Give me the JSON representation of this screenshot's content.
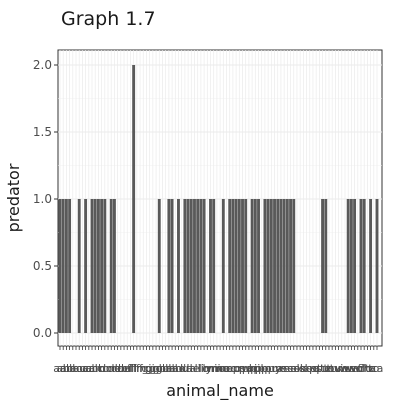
{
  "chart_data": {
    "type": "bar",
    "title": "Graph 1.7",
    "xlabel": "animal_name",
    "ylabel": "predator",
    "ylim": [
      0,
      2
    ],
    "yticks": [
      "0.0",
      "0.5",
      "1.0",
      "1.5",
      "2.0"
    ],
    "grid": true,
    "legend": "none",
    "bar_color": "#595959",
    "categories_count": 100,
    "values": [
      1,
      1,
      1,
      1,
      0,
      0,
      1,
      0,
      1,
      0,
      1,
      1,
      1,
      1,
      1,
      0,
      1,
      1,
      0,
      0,
      0,
      0,
      0,
      2,
      0,
      0,
      0,
      0,
      0,
      0,
      0,
      1,
      0,
      0,
      1,
      1,
      0,
      1,
      0,
      1,
      1,
      1,
      1,
      1,
      1,
      1,
      0,
      1,
      1,
      0,
      0,
      1,
      0,
      1,
      1,
      1,
      1,
      1,
      1,
      0,
      1,
      1,
      1,
      0,
      1,
      1,
      1,
      1,
      1,
      1,
      1,
      1,
      1,
      1,
      0,
      0,
      0,
      0,
      0,
      0,
      0,
      0,
      1,
      1,
      0,
      0,
      0,
      0,
      0,
      0,
      1,
      1,
      1,
      0,
      1,
      1,
      0,
      1,
      0,
      1
    ],
    "x_tick_labels": [
      "aa",
      "an",
      "an",
      "ba",
      "ba",
      "bo",
      "bu",
      "ca",
      "ca",
      "ca",
      "ch",
      "ch",
      "ch",
      "cl",
      "cr",
      "cr",
      "cr",
      "de",
      "do",
      "do",
      "du",
      "el",
      "fl",
      "fl",
      "fr",
      "fr",
      "fr",
      "gi",
      "gi",
      "gn",
      "go",
      "go",
      "gu",
      "ha",
      "ha",
      "ha",
      "ho",
      "ho",
      "hu",
      "ki",
      "la",
      "la",
      "le",
      "li",
      "li",
      "lo",
      "ly",
      "mi",
      "mi",
      "mo",
      "mo",
      "ne",
      "ne",
      "oc",
      "op",
      "or",
      "os",
      "ow",
      "pa",
      "ph",
      "pi",
      "pi",
      "pl",
      "po",
      "po",
      "pu",
      "pu",
      "py",
      "ra",
      "re",
      "re",
      "sc",
      "se",
      "se",
      "sk",
      "sk",
      "sl",
      "so",
      "sp",
      "sq",
      "st",
      "st",
      "su",
      "te",
      "to",
      "tu",
      "tu",
      "vi",
      "vo",
      "vu",
      "wa",
      "wa",
      "wo",
      "wr",
      "fl",
      "ch",
      "lo",
      "ta",
      "to",
      "ca"
    ]
  }
}
